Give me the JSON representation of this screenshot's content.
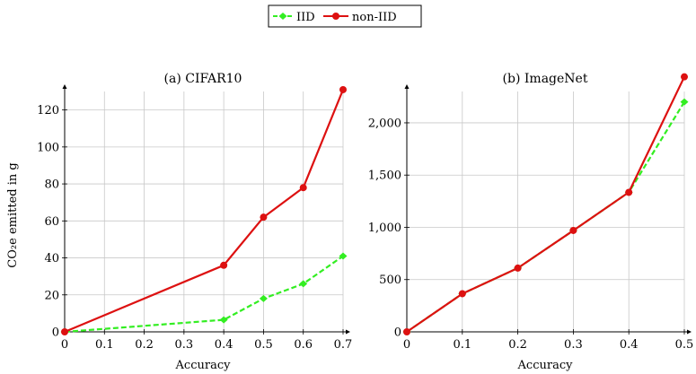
{
  "legend": {
    "items": [
      {
        "label": "IID",
        "color": "#33ee22",
        "dashed": true
      },
      {
        "label": "non-IID",
        "color": "#dd1111",
        "dashed": false
      }
    ]
  },
  "chart_data": [
    {
      "type": "line",
      "title": "(a) CIFAR10",
      "xlabel": "Accuracy",
      "ylabel": "CO₂e emitted in g",
      "xlim": [
        0,
        0.7
      ],
      "ylim": [
        0,
        130
      ],
      "xticks": [
        0,
        0.1,
        0.2,
        0.3,
        0.4,
        0.5,
        0.6,
        0.7
      ],
      "xtick_labels": [
        "0",
        "0.1",
        "0.2",
        "0.3",
        "0.4",
        "0.5",
        "0.6",
        "0.7"
      ],
      "yticks": [
        0,
        20,
        40,
        60,
        80,
        100,
        120
      ],
      "ytick_labels": [
        "0",
        "20",
        "40",
        "60",
        "80",
        "100",
        "120"
      ],
      "grid": true,
      "series": [
        {
          "name": "IID",
          "x": [
            0,
            0.4,
            0.5,
            0.6,
            0.7
          ],
          "y": [
            0,
            6.5,
            18,
            26,
            41
          ]
        },
        {
          "name": "non-IID",
          "x": [
            0,
            0.4,
            0.5,
            0.6,
            0.7
          ],
          "y": [
            0,
            36,
            62,
            78,
            131
          ]
        }
      ]
    },
    {
      "type": "line",
      "title": "(b) ImageNet",
      "xlabel": "Accuracy",
      "ylabel": "",
      "xlim": [
        0,
        0.5
      ],
      "ylim": [
        0,
        2300
      ],
      "xticks": [
        0,
        0.1,
        0.2,
        0.3,
        0.4,
        0.5
      ],
      "xtick_labels": [
        "0",
        "0.1",
        "0.2",
        "0.3",
        "0.4",
        "0.5"
      ],
      "yticks": [
        0,
        500,
        1000,
        1500,
        2000
      ],
      "ytick_labels": [
        "0",
        "500",
        "1,000",
        "1,500",
        "2,000"
      ],
      "grid": true,
      "series": [
        {
          "name": "IID",
          "x": [
            0,
            0.1,
            0.2,
            0.3,
            0.4,
            0.5
          ],
          "y": [
            0,
            365,
            610,
            970,
            1335,
            2200
          ]
        },
        {
          "name": "non-IID",
          "x": [
            0,
            0.1,
            0.2,
            0.3,
            0.4,
            0.5
          ],
          "y": [
            0,
            365,
            610,
            970,
            1335,
            2440
          ]
        }
      ]
    }
  ]
}
